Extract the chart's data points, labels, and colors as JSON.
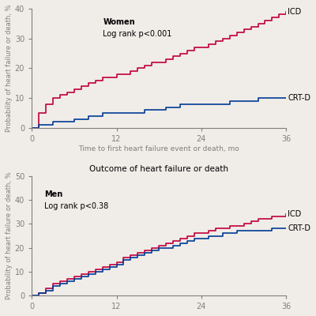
{
  "top": {
    "title_inline": "Women\nLog rank p<0.001",
    "ylabel": "Probability of heart failure or death, %",
    "xlabel": "Time to first heart failure event or death, mo",
    "xlim": [
      0,
      36
    ],
    "ylim": [
      0,
      40
    ],
    "yticks": [
      0,
      10,
      20,
      30,
      40
    ],
    "xticks": [
      0,
      12,
      24,
      36
    ],
    "icd_color": "#c0003c",
    "crtd_color": "#003c96",
    "icd_x": [
      0,
      1,
      2,
      3,
      4,
      5,
      6,
      7,
      8,
      9,
      10,
      11,
      12,
      13,
      14,
      15,
      16,
      17,
      18,
      19,
      20,
      21,
      22,
      23,
      24,
      25,
      26,
      27,
      28,
      29,
      30,
      31,
      32,
      33,
      34,
      35,
      36
    ],
    "icd_y": [
      0,
      5,
      8,
      10,
      11,
      12,
      13,
      14,
      15,
      16,
      17,
      17,
      18,
      18,
      19,
      20,
      21,
      22,
      22,
      23,
      24,
      25,
      26,
      27,
      27,
      28,
      29,
      30,
      31,
      32,
      33,
      34,
      35,
      36,
      37,
      38,
      39
    ],
    "crtd_x": [
      0,
      1,
      2,
      3,
      4,
      5,
      6,
      7,
      8,
      9,
      10,
      11,
      12,
      13,
      14,
      15,
      16,
      17,
      18,
      19,
      20,
      21,
      22,
      23,
      24,
      25,
      26,
      27,
      28,
      29,
      30,
      31,
      32,
      33,
      34,
      35,
      36
    ],
    "crtd_y": [
      0,
      1,
      1,
      2,
      2,
      2,
      3,
      3,
      4,
      4,
      5,
      5,
      5,
      5,
      5,
      5,
      6,
      6,
      6,
      7,
      7,
      8,
      8,
      8,
      8,
      8,
      8,
      8,
      9,
      9,
      9,
      9,
      10,
      10,
      10,
      10,
      10
    ],
    "icd_label": "ICD",
    "crtd_label": "CRT-D"
  },
  "bottom": {
    "title": "Outcome of heart failure or death",
    "title_inline": "Men\nLog rank p<0.38",
    "ylabel": "Probability of heart failure or death, %",
    "xlim": [
      0,
      36
    ],
    "ylim": [
      0,
      50
    ],
    "yticks": [
      0,
      10,
      20,
      30,
      40,
      50
    ],
    "xticks": [
      0,
      12,
      24,
      36
    ],
    "icd_color": "#c0003c",
    "crtd_color": "#003c96",
    "icd_x": [
      0,
      1,
      2,
      3,
      4,
      5,
      6,
      7,
      8,
      9,
      10,
      11,
      12,
      13,
      14,
      15,
      16,
      17,
      18,
      19,
      20,
      21,
      22,
      23,
      24,
      25,
      26,
      27,
      28,
      29,
      30,
      31,
      32,
      33,
      34,
      35,
      36
    ],
    "icd_y": [
      0,
      1,
      3,
      5,
      6,
      7,
      8,
      9,
      10,
      11,
      12,
      13,
      14,
      16,
      17,
      18,
      19,
      20,
      21,
      22,
      23,
      24,
      25,
      26,
      26,
      27,
      28,
      28,
      29,
      29,
      30,
      31,
      32,
      32,
      33,
      33,
      34
    ],
    "crtd_x": [
      0,
      1,
      2,
      3,
      4,
      5,
      6,
      7,
      8,
      9,
      10,
      11,
      12,
      13,
      14,
      15,
      16,
      17,
      18,
      19,
      20,
      21,
      22,
      23,
      24,
      25,
      26,
      27,
      28,
      29,
      30,
      31,
      32,
      33,
      34,
      35,
      36
    ],
    "crtd_y": [
      0,
      1,
      2,
      4,
      5,
      6,
      7,
      8,
      9,
      10,
      11,
      12,
      13,
      15,
      16,
      17,
      18,
      19,
      20,
      20,
      21,
      22,
      23,
      24,
      24,
      25,
      25,
      26,
      26,
      27,
      27,
      27,
      27,
      27,
      28,
      28,
      28
    ],
    "icd_label": "ICD",
    "crtd_label": "CRT-D"
  },
  "bg_color": "#f0ece8",
  "plot_bg": "#f0ece8"
}
